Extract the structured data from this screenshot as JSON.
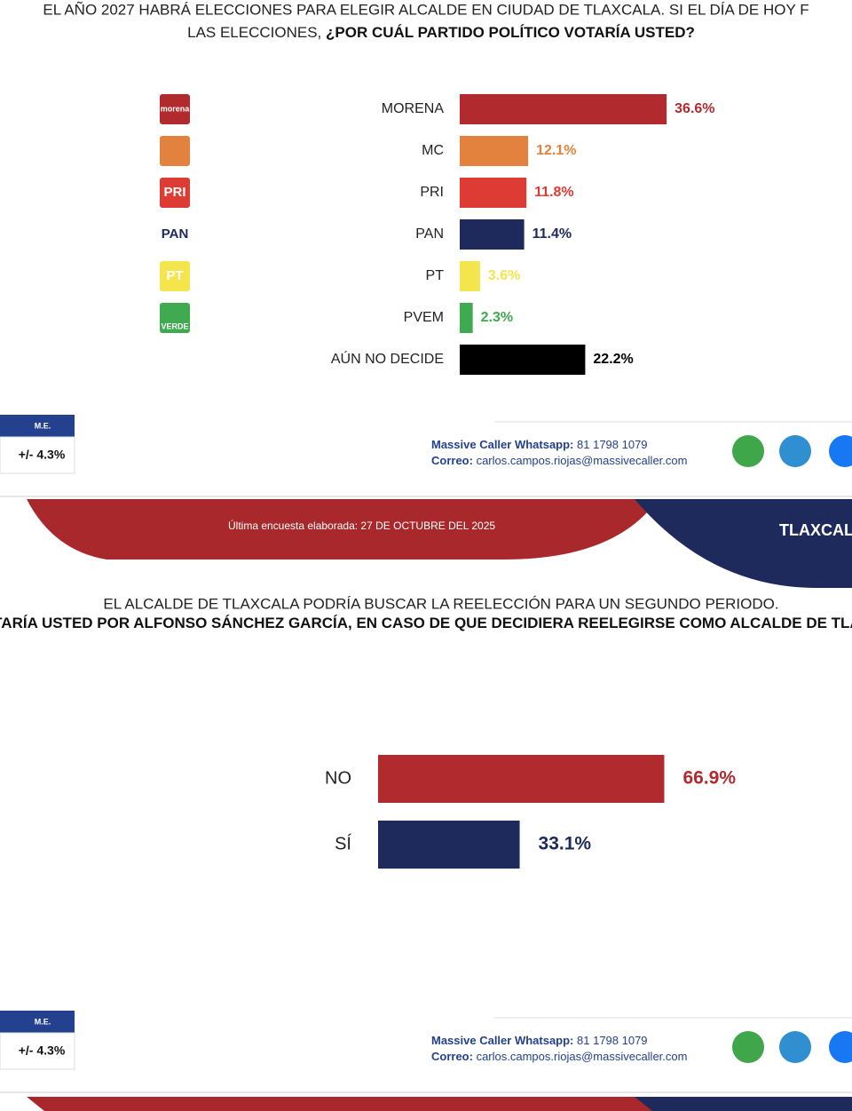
{
  "chart_data": [
    {
      "type": "bar",
      "orientation": "horizontal",
      "title": "EL AÑO 2027 HABRÁ ELECCIONES PARA ELEGIR ALCALDE EN CIUDAD DE TLAXCALA. SI EL DÍA DE HOY F",
      "subtitle": "LAS ELECCIONES,",
      "subtitle_bold": "¿POR CUÁL PARTIDO POLÍTICO VOTARÍA USTED?",
      "categories": [
        "MORENA",
        "MC",
        "PRI",
        "PAN",
        "PT",
        "PVEM",
        "AÚN NO DECIDE"
      ],
      "logo_labels": [
        "morena",
        null,
        "PRI",
        "PAN",
        "PT",
        "VERDE"
      ],
      "values": [
        36.6,
        12.1,
        11.8,
        11.4,
        3.6,
        2.3,
        22.2
      ],
      "value_labels": [
        "36.6%",
        "12.1%",
        "11.8%",
        "11.4%",
        "3.6%",
        "2.3%",
        "22.2%"
      ],
      "colors": [
        "#b02a2e",
        "#e3823f",
        "#dd3b34",
        "#1f2a5c",
        "#f4e54c",
        "#3faa4f",
        "#000000"
      ]
    },
    {
      "type": "bar",
      "orientation": "horizontal",
      "title": "EL ALCALDE DE TLAXCALA PODRÍA BUSCAR LA REELECCIÓN PARA UN SEGUNDO PERIODO.",
      "subtitle_bold": "OTARÍA USTED POR ALFONSO SÁNCHEZ GARCÍA, EN CASO DE QUE DECIDIERA REELEGIRSE COMO ALCALDE DE TLAX",
      "categories": [
        "NO",
        "SÍ"
      ],
      "values": [
        66.9,
        33.1
      ],
      "value_labels": [
        "66.9%",
        "33.1%"
      ],
      "colors": [
        "#b02a2e",
        "#1f2a5c"
      ]
    }
  ],
  "footer": {
    "me_header": "M.E.",
    "me_value": "+/- 4.3%",
    "whatsapp_label": "Massive Caller Whatsapp:",
    "whatsapp": "81 1798 1079",
    "email_label": "Correo:",
    "email": "carlos.campos.riojas@massivecaller.com"
  },
  "banner": {
    "date": "Última encuesta elaborada: 27 DE OCTUBRE DEL 2025",
    "region": "TLAXCAL"
  }
}
